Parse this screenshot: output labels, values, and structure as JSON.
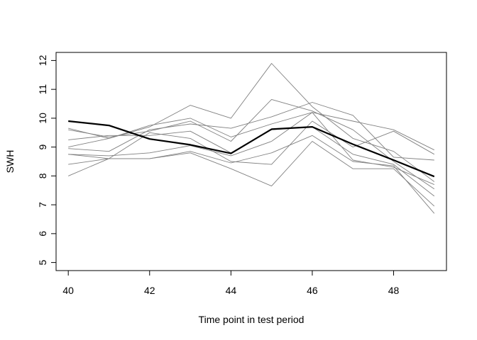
{
  "chart_data": {
    "type": "line",
    "title": "",
    "xlabel": "Time point in test period",
    "ylabel": "SWH",
    "xlim": [
      39.7,
      49.3
    ],
    "ylim": [
      4.72,
      12.28
    ],
    "x_ticks": [
      40,
      42,
      44,
      46,
      48
    ],
    "y_ticks": [
      5,
      6,
      7,
      8,
      9,
      10,
      11,
      12
    ],
    "grid": false,
    "legend": "none",
    "x": [
      40,
      41,
      42,
      43,
      44,
      45,
      46,
      47,
      48,
      49
    ],
    "series": [
      {
        "values": [
          9.9,
          9.75,
          9.28,
          9.08,
          8.78,
          9.62,
          9.7,
          9.1,
          8.55,
          7.98
        ],
        "color": "#000000",
        "emphasis": true
      },
      {
        "values": [
          9.65,
          9.3,
          9.7,
          10.45,
          10.0,
          11.9,
          10.4,
          9.3,
          8.85,
          7.8
        ],
        "color": "#808080"
      },
      {
        "values": [
          9.6,
          9.35,
          9.55,
          9.9,
          9.2,
          10.65,
          10.25,
          9.6,
          8.5,
          7.55
        ],
        "color": "#808080"
      },
      {
        "values": [
          9.0,
          9.3,
          9.75,
          10.0,
          9.35,
          9.8,
          10.2,
          9.9,
          9.6,
          8.9
        ],
        "color": "#808080"
      },
      {
        "values": [
          8.95,
          8.85,
          9.6,
          9.8,
          9.65,
          10.05,
          10.55,
          10.1,
          8.65,
          8.55
        ],
        "color": "#808080"
      },
      {
        "values": [
          9.25,
          9.4,
          9.4,
          9.55,
          8.8,
          9.6,
          9.7,
          8.75,
          8.4,
          7.3
        ],
        "color": "#808080"
      },
      {
        "values": [
          8.75,
          8.7,
          8.8,
          9.05,
          8.7,
          9.2,
          10.2,
          8.55,
          8.3,
          7.7
        ],
        "color": "#808080"
      },
      {
        "values": [
          8.75,
          8.6,
          8.6,
          8.85,
          8.45,
          8.8,
          9.4,
          8.5,
          8.35,
          6.7
        ],
        "color": "#808080"
      },
      {
        "values": [
          8.4,
          8.6,
          8.6,
          8.8,
          8.25,
          7.65,
          9.2,
          8.25,
          8.25,
          6.95
        ],
        "color": "#808080"
      },
      {
        "values": [
          8.0,
          8.6,
          9.5,
          9.3,
          8.5,
          8.4,
          9.9,
          9.0,
          9.55,
          8.75
        ],
        "color": "#808080"
      }
    ]
  }
}
